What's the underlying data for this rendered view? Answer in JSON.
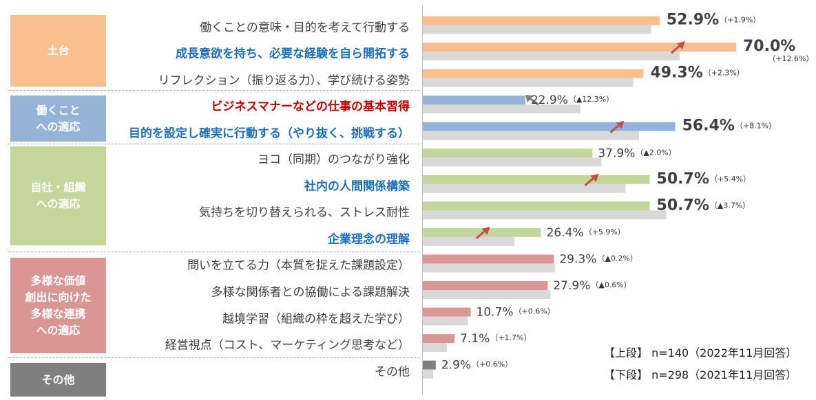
{
  "chart_data": {
    "type": "bar",
    "orientation": "horizontal",
    "groups": [
      {
        "label": "土台",
        "color": "#f9bf8f",
        "items": [
          0,
          1,
          2
        ]
      },
      {
        "label": "働くこと\nへの適応",
        "color": "#95b3d7",
        "items": [
          3,
          4
        ]
      },
      {
        "label": "自社・組織\nへの適応",
        "color": "#c4d79b",
        "items": [
          5,
          6,
          7,
          8
        ]
      },
      {
        "label": "多様な価値\n創出に向けた\n多様な連携\nへの適応",
        "color": "#da9694",
        "items": [
          9,
          10,
          11,
          12
        ]
      },
      {
        "label": "その他",
        "color": "#7f7f7f",
        "items": [
          13
        ]
      }
    ],
    "categories": [
      "働くことの意味・目的を考えて行動する",
      "成長意欲を持ち、必要な経験を自ら開拓する",
      "リフレクション（振り返る力）、学び続ける姿勢",
      "ビジネスマナーなどの仕事の基本習得",
      "目的を設定し確実に行動する（やり抜く、挑戦する）",
      "ヨコ（同期）のつながり強化",
      "社内の人間関係構築",
      "気持ちを切り替えられる、ストレス耐性",
      "企業理念の理解",
      "問いを立てる力（本質を捉えた課題設定）",
      "多様な関係者との協働による課題解決",
      "越境学習（組織の枠を超えた学び）",
      "経営視点（コスト、マーケティング思考など）",
      "その他"
    ],
    "highlight": [
      "none",
      "blue",
      "none",
      "red",
      "blue",
      "none",
      "blue",
      "none",
      "blue",
      "none",
      "none",
      "none",
      "none",
      "none"
    ],
    "series": [
      {
        "name": "【上段】 n=140（2022年11月回答）",
        "values": [
          52.9,
          70.0,
          49.3,
          22.9,
          56.4,
          37.9,
          50.7,
          50.7,
          26.4,
          29.3,
          27.9,
          10.7,
          7.1,
          2.9
        ]
      },
      {
        "name": "【下段】 n=298（2021年11月回答）",
        "values": [
          51.0,
          57.4,
          47.0,
          35.2,
          48.3,
          39.9,
          45.3,
          54.4,
          20.5,
          29.5,
          28.5,
          10.1,
          5.4,
          2.3
        ]
      }
    ],
    "value_labels": [
      "52.9%",
      "70.0%",
      "49.3%",
      "22.9%",
      "56.4%",
      "37.9%",
      "50.7%",
      "50.7%",
      "26.4%",
      "29.3%",
      "27.9%",
      "10.7%",
      "7.1%",
      "2.9%"
    ],
    "diff_labels": [
      "（+1.9%）",
      "（+12.6%）",
      "（+2.3%）",
      "（▲12.3%）",
      "（+8.1%）",
      "（▲2.0%）",
      "（+5.4%）",
      "（▲3.7%）",
      "（+5.9%）",
      "（▲0.2%）",
      "（▲0.6%）",
      "（+0.6%）",
      "（+1.7%）",
      "（+0.6%）"
    ],
    "large_value": [
      true,
      true,
      true,
      false,
      true,
      false,
      true,
      true,
      false,
      false,
      false,
      false,
      false,
      false
    ],
    "arrows": [
      "none",
      "up",
      "none",
      "down",
      "up",
      "none",
      "up",
      "none",
      "up",
      "none",
      "none",
      "none",
      "none",
      "none"
    ],
    "colors": {
      "prior_year": "#d9d9d9",
      "arrow_up": "#c0504d",
      "arrow_down": "#7f7f7f",
      "blue_text": "#1f6fb8",
      "red_text": "#c00000"
    },
    "xlim": [
      0,
      100
    ],
    "grid": false,
    "legend_position": "bottom-right"
  }
}
